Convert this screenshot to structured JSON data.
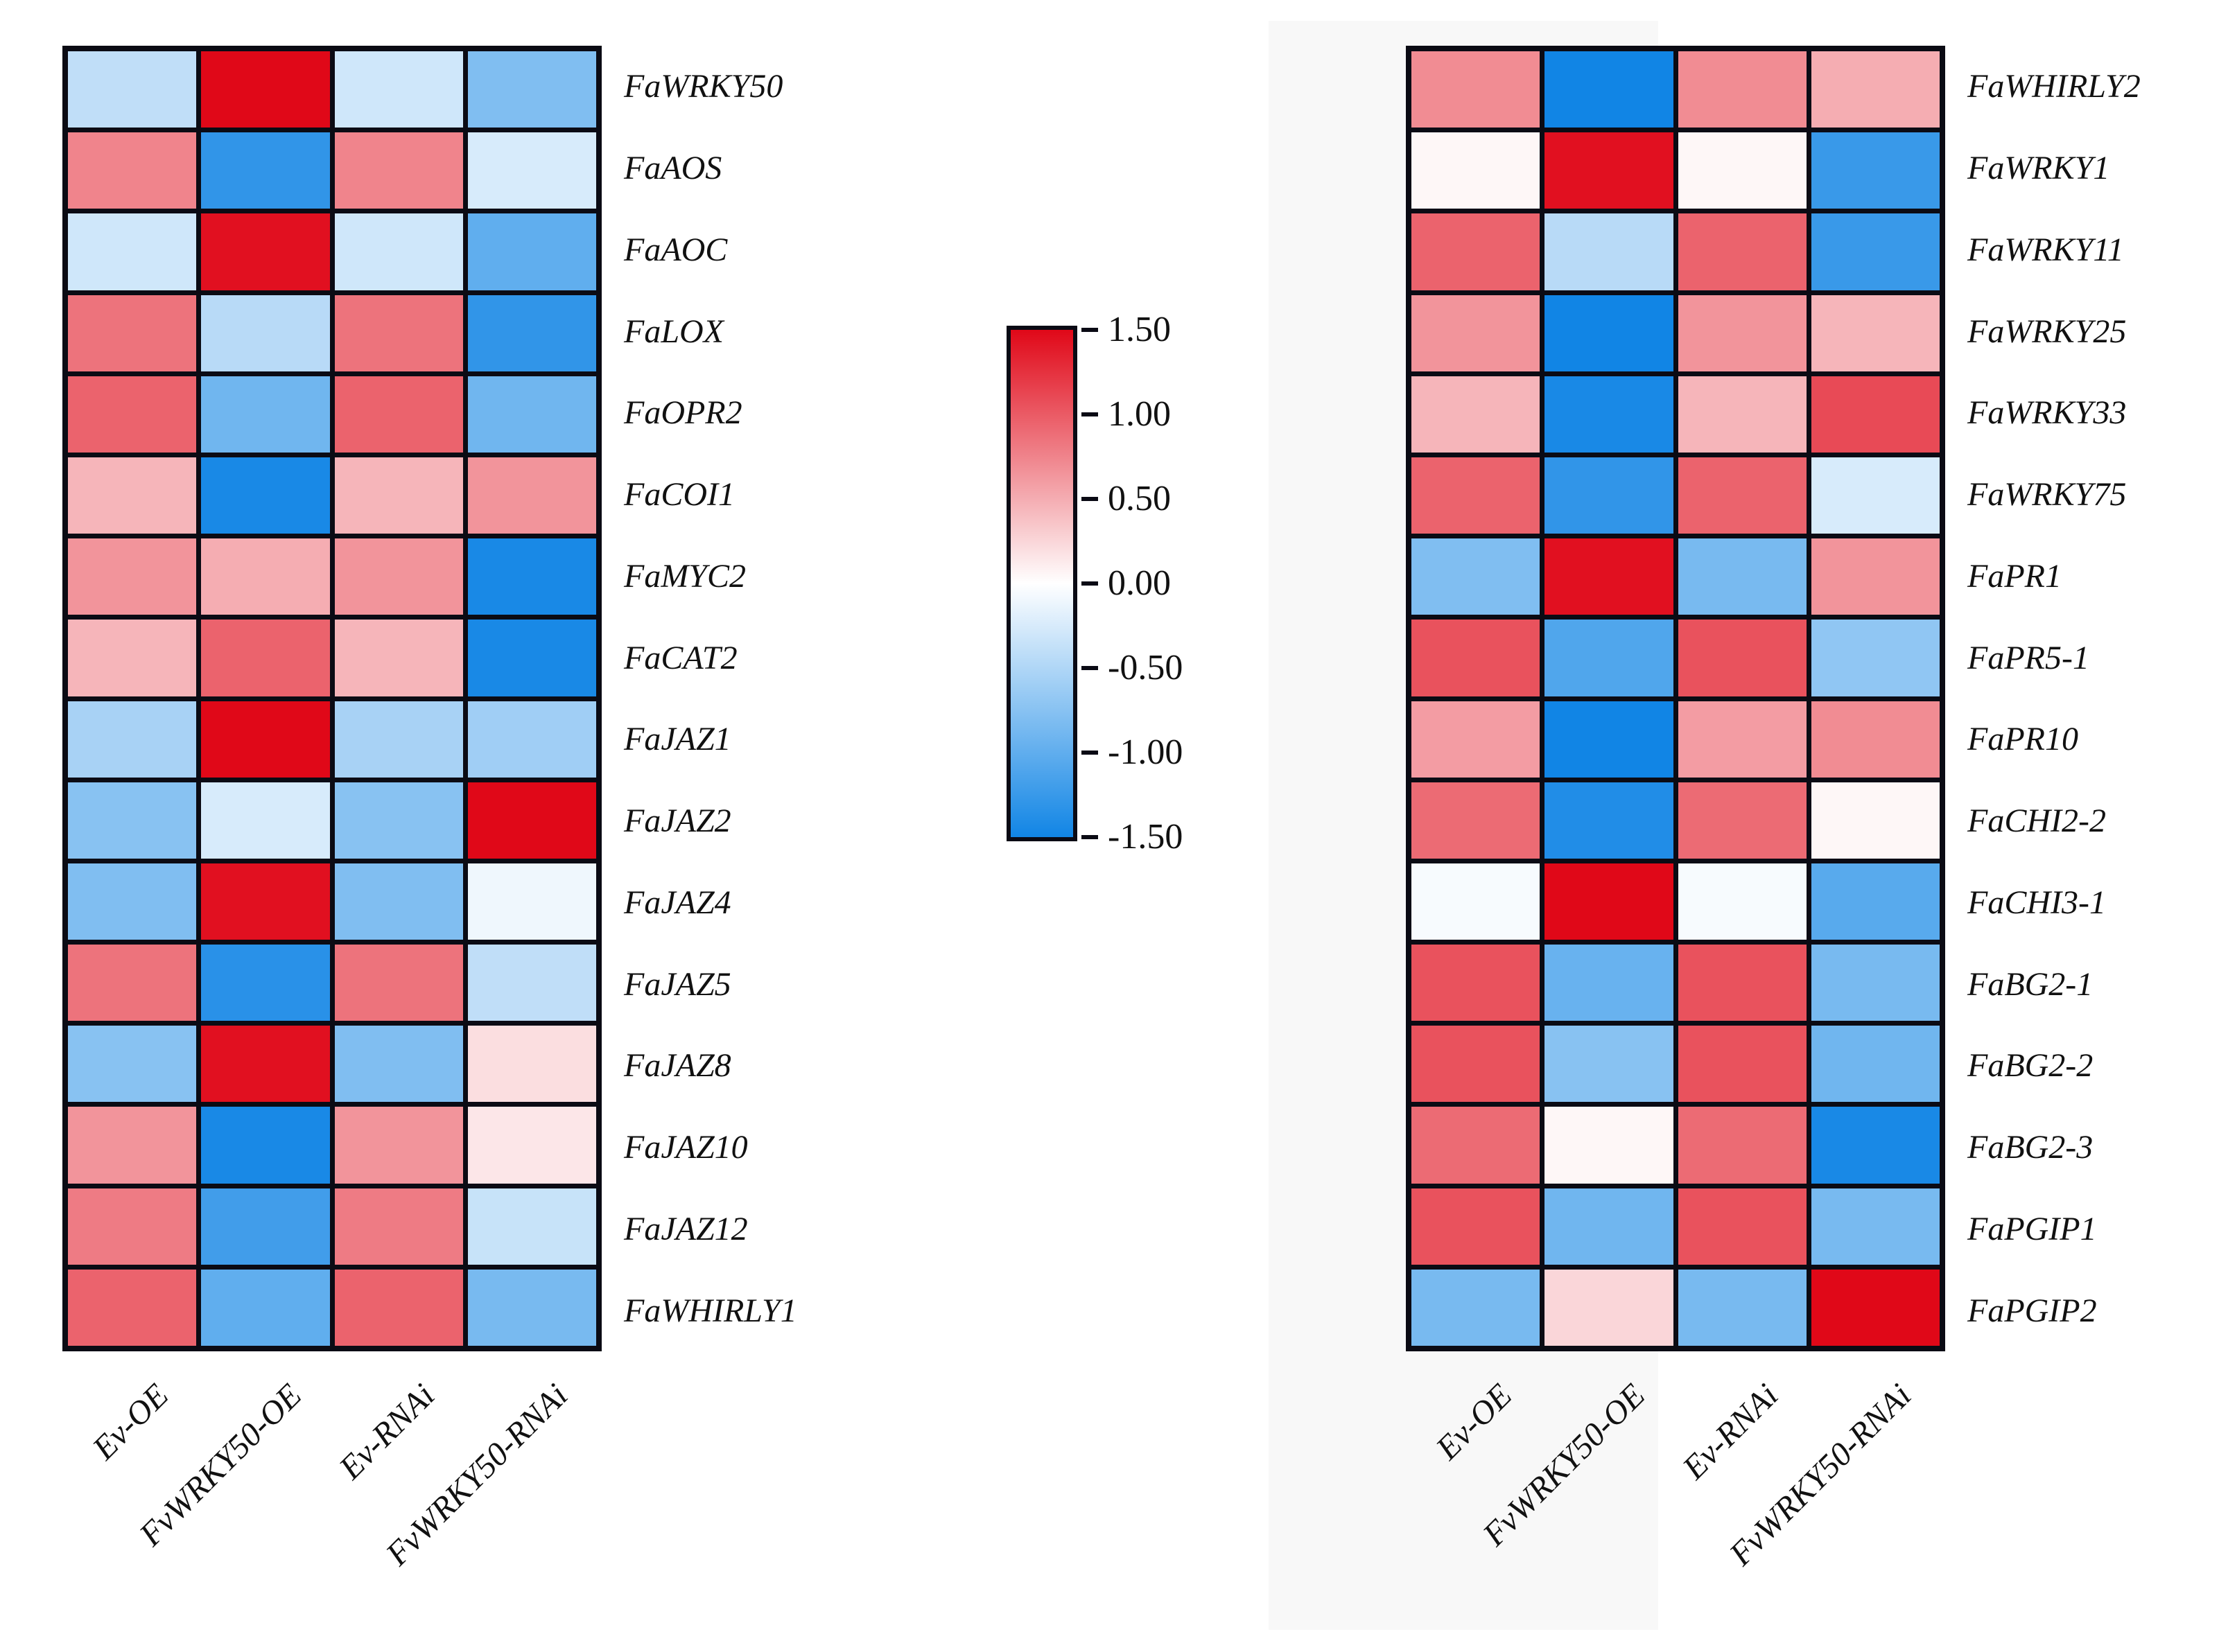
{
  "colors": {
    "background": "#ffffff",
    "band": "#f8f8f8",
    "grid_line": "#0b0b14",
    "text": "#111111"
  },
  "colorbar": {
    "tick_labels": [
      "1.50",
      "1.00",
      "0.50",
      "0.00",
      "-0.50",
      "-1.00",
      "-1.50"
    ],
    "max": 1.5,
    "min": -1.5,
    "color_max": "#e00818",
    "color_mid": "#ffffff",
    "color_min": "#1185e5"
  },
  "chart_data": [
    {
      "type": "heatmap",
      "panel": "left",
      "legend_position": "center",
      "grid": true,
      "value_range": [
        -1.5,
        1.5
      ],
      "columns": [
        "Ev-OE",
        "FvWRKY50-OE",
        "Ev-RNAi",
        "FvWRKY50-RNAi"
      ],
      "rows": [
        "FaWRKY50",
        "FaAOS",
        "FaAOC",
        "FaLOX",
        "FaOPR2",
        "FaCOI1",
        "FaMYC2",
        "FaCAT2",
        "FaJAZ1",
        "FaJAZ2",
        "FaJAZ4",
        "FaJAZ5",
        "FaJAZ8",
        "FaJAZ10",
        "FaJAZ12",
        "FaWHIRLY1"
      ],
      "values": [
        [
          -0.4,
          1.5,
          -0.3,
          -0.8
        ],
        [
          0.75,
          -1.3,
          0.75,
          -0.25
        ],
        [
          -0.3,
          1.45,
          -0.3,
          -1.0
        ],
        [
          0.85,
          -0.45,
          0.85,
          -1.3
        ],
        [
          0.95,
          -0.9,
          0.95,
          -0.9
        ],
        [
          0.45,
          -1.45,
          0.45,
          0.65
        ],
        [
          0.65,
          0.5,
          0.65,
          -1.45
        ],
        [
          0.45,
          0.95,
          0.45,
          -1.45
        ],
        [
          -0.55,
          1.5,
          -0.55,
          -0.6
        ],
        [
          -0.75,
          -0.25,
          -0.75,
          1.5
        ],
        [
          -0.8,
          1.45,
          -0.8,
          -0.1
        ],
        [
          0.85,
          -1.35,
          0.85,
          -0.4
        ],
        [
          -0.75,
          1.45,
          -0.8,
          0.2
        ],
        [
          0.65,
          -1.45,
          0.65,
          0.15
        ],
        [
          0.8,
          -1.2,
          0.8,
          -0.35
        ],
        [
          0.95,
          -1.0,
          0.95,
          -0.85
        ]
      ]
    },
    {
      "type": "heatmap",
      "panel": "right",
      "legend_position": "center",
      "grid": true,
      "value_range": [
        -1.5,
        1.5
      ],
      "columns": [
        "Ev-OE",
        "FvWRKY50-OE",
        "Ev-RNAi",
        "FvWRKY50-RNAi"
      ],
      "rows": [
        "FaWHIRLY2",
        "FaWRKY1",
        "FaWRKY11",
        "FaWRKY25",
        "FaWRKY33",
        "FaWRKY75",
        "FaPR1",
        "FaPR5-1",
        "FaPR10",
        "FaCHI2-2",
        "FaCHI3-1",
        "FaBG2-1",
        "FaBG2-2",
        "FaBG2-3",
        "FaPGIP1",
        "FaPGIP2"
      ],
      "values": [
        [
          0.7,
          -1.5,
          0.7,
          0.5
        ],
        [
          0.05,
          1.45,
          0.05,
          -1.25
        ],
        [
          0.95,
          -0.45,
          0.95,
          -1.25
        ],
        [
          0.65,
          -1.5,
          0.65,
          0.45
        ],
        [
          0.45,
          -1.45,
          0.45,
          1.1
        ],
        [
          0.95,
          -1.3,
          0.95,
          -0.25
        ],
        [
          -0.8,
          1.45,
          -0.85,
          0.65
        ],
        [
          1.05,
          -1.1,
          1.05,
          -0.7
        ],
        [
          0.6,
          -1.5,
          0.6,
          0.7
        ],
        [
          0.9,
          -1.4,
          0.9,
          0.05
        ],
        [
          -0.05,
          1.5,
          -0.05,
          -1.05
        ],
        [
          1.05,
          -0.95,
          1.05,
          -0.85
        ],
        [
          1.05,
          -0.75,
          1.05,
          -0.9
        ],
        [
          0.9,
          0.05,
          0.9,
          -1.45
        ],
        [
          1.05,
          -0.9,
          1.05,
          -0.85
        ],
        [
          -0.85,
          0.25,
          -0.85,
          1.5
        ]
      ]
    }
  ]
}
